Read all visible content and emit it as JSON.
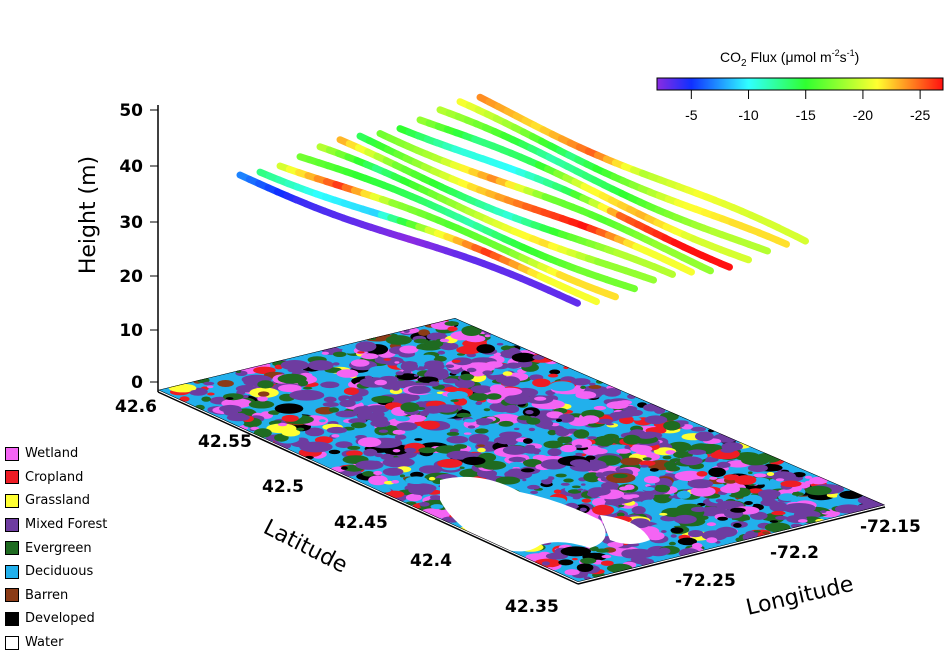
{
  "chart_data": {
    "type": "3d-line-over-map",
    "zlabel": "Height (m)",
    "xlabel": "Latitude",
    "ylabel": "Longitude",
    "z_ticks": [
      "0",
      "10",
      "20",
      "30",
      "40",
      "50"
    ],
    "lat_ticks": [
      "42.6",
      "42.55",
      "42.5",
      "42.45",
      "42.4",
      "42.35"
    ],
    "lon_ticks": [
      "-72.25",
      "-72.2",
      "-72.15"
    ],
    "zlim": [
      0,
      50
    ],
    "colorbar": {
      "title_main": "CO",
      "title_sub": "2",
      "title_rest": " Flux (μmol m",
      "title_sup1": "-2",
      "title_s": "s",
      "title_sup2": "-1",
      "title_end": ")",
      "ticks": [
        "-5",
        "-10",
        "-15",
        "-20",
        "-25"
      ],
      "range": [
        -2,
        -27
      ]
    },
    "tracks": [
      {
        "flux": [
          -7,
          -4,
          -3,
          -2,
          -3,
          -3
        ]
      },
      {
        "flux": [
          -13,
          -10,
          -9,
          -20,
          -26,
          -21
        ]
      },
      {
        "flux": [
          -20,
          -26,
          -18,
          -16,
          -17,
          -22
        ]
      },
      {
        "flux": [
          -17,
          -15,
          -14,
          -12,
          -15,
          -17
        ]
      },
      {
        "flux": [
          -19,
          -13,
          -17,
          -20,
          -22,
          -18
        ]
      },
      {
        "flux": [
          -23,
          -17,
          -14,
          -11,
          -16,
          -19
        ]
      },
      {
        "flux": [
          -14,
          -18,
          -22,
          -25,
          -27,
          -21
        ]
      },
      {
        "flux": [
          -17,
          -19,
          -24,
          -17,
          -16,
          -18
        ]
      },
      {
        "flux": [
          -15,
          -11,
          -10,
          -14,
          -25,
          -27
        ]
      },
      {
        "flux": [
          -18,
          -13,
          -14,
          -21,
          -23,
          -20
        ]
      },
      {
        "flux": [
          -19,
          -16,
          -12,
          -14,
          -17,
          -19
        ]
      },
      {
        "flux": [
          -21,
          -18,
          -13,
          -17,
          -21,
          -22
        ]
      },
      {
        "flux": [
          -24,
          -22,
          -25,
          -19,
          -21,
          -20
        ]
      }
    ],
    "legend": [
      {
        "label": "Wetland",
        "color": "#f464f4"
      },
      {
        "label": "Cropland",
        "color": "#ee1c24"
      },
      {
        "label": "Grassland",
        "color": "#ffff33"
      },
      {
        "label": "Mixed Forest",
        "color": "#6e3ca0"
      },
      {
        "label": "Evergreen",
        "color": "#1f6b21"
      },
      {
        "label": "Deciduous",
        "color": "#22b0ec"
      },
      {
        "label": "Barren",
        "color": "#8b3b16"
      },
      {
        "label": "Developed",
        "color": "#000000"
      },
      {
        "label": "Water",
        "color": "#ffffff"
      }
    ]
  }
}
